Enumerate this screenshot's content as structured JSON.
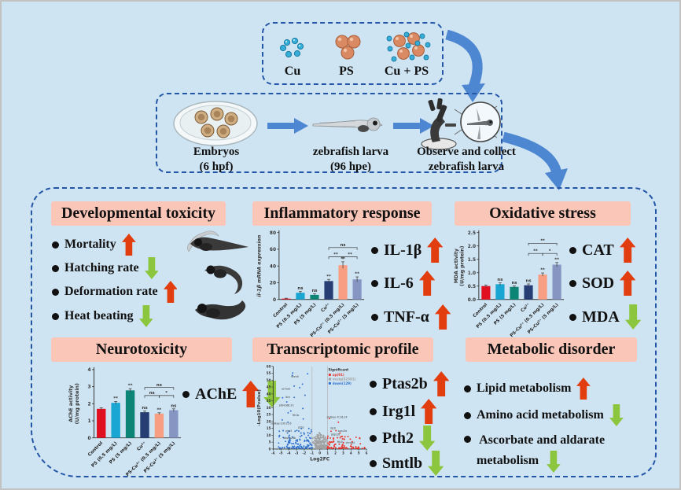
{
  "page": {
    "bg": "#cfe4f2",
    "dashed_border": "#2456a8",
    "header_bg": "#f9c6b8",
    "up_color": "#e23d0e",
    "down_color": "#8cc63e",
    "flow_arrow_blue": "#4d87d2"
  },
  "exposure": {
    "items": [
      {
        "label": "Cu"
      },
      {
        "label": "PS"
      },
      {
        "label": "Cu + PS"
      }
    ]
  },
  "workflow": {
    "steps": [
      {
        "line1": "Embryos",
        "line2": "(6 hpf)"
      },
      {
        "line1": "zebrafish larva",
        "line2": "(96 hpe)"
      },
      {
        "line1": "Observe and collect",
        "line2": "zebrafish larva"
      }
    ]
  },
  "panels": {
    "developmental": {
      "title": "Developmental toxicity",
      "items": [
        {
          "label": "Mortality",
          "direction": "up"
        },
        {
          "label": "Hatching rate",
          "direction": "down"
        },
        {
          "label": "Deformation rate",
          "direction": "up"
        },
        {
          "label": "Heat beating",
          "direction": "down"
        }
      ]
    },
    "inflammatory": {
      "title": "Inflammatory response",
      "items": [
        {
          "label": "IL-1β",
          "direction": "up"
        },
        {
          "label": "IL-6",
          "direction": "up"
        },
        {
          "label": "TNF-α",
          "direction": "up"
        }
      ]
    },
    "oxidative": {
      "title": "Oxidative stress",
      "items": [
        {
          "label": "CAT",
          "direction": "up"
        },
        {
          "label": "SOD",
          "direction": "up"
        },
        {
          "label": "MDA",
          "direction": "down"
        }
      ]
    },
    "neurotoxicity": {
      "title": "Neurotoxicity",
      "items": [
        {
          "label": "AChE",
          "direction": "updown"
        }
      ]
    },
    "transcriptomic": {
      "title": "Transcriptomic profile",
      "items": [
        {
          "label": "Ptas2b",
          "direction": "up"
        },
        {
          "label": "Irg1l",
          "direction": "up"
        },
        {
          "label": "Pth2",
          "direction": "down"
        },
        {
          "label": "Smtlb",
          "direction": "down"
        }
      ]
    },
    "metabolic": {
      "title": "Metabolic disorder",
      "items": [
        {
          "label": "Lipid metabolism",
          "direction": "up"
        },
        {
          "label": "Amino acid metabolism",
          "direction": "down"
        },
        {
          "label": "Ascorbate and aldarate metabolism",
          "direction": "down",
          "wrap_before": "metabolism"
        }
      ]
    }
  },
  "chart_data": [
    {
      "type": "bar",
      "id": "il1b-expression",
      "ylabel": [
        "il-1β mRNA expression"
      ],
      "ylabel_italic": true,
      "ylim": [
        0,
        80
      ],
      "ytick_vals": [
        0,
        20,
        40,
        60,
        80
      ],
      "ytick_labels": [
        "0",
        "20",
        "40",
        "60",
        "80"
      ],
      "categories": [
        "Control",
        "PS (0.5 mg/L)",
        "PS (5 mg/L)",
        "Cu²⁺",
        "PS-Cu²⁺ (0.5 mg/L)",
        "PS-Cu²⁺ (5 mg/L)"
      ],
      "values": [
        1,
        8,
        5.5,
        22,
        41,
        24
      ],
      "errors": [
        0.5,
        1.5,
        1.2,
        2,
        4,
        3
      ],
      "bar_labels": [
        "",
        "ns",
        "ns",
        "**",
        "**",
        "**"
      ],
      "colors": [
        "#e01020",
        "#19a6d2",
        "#0c8577",
        "#263e74",
        "#f89e83",
        "#8795c3"
      ],
      "brackets": [
        {
          "from": 3,
          "to": 4,
          "label": "**",
          "y": 51
        },
        {
          "from": 4,
          "to": 5,
          "label": "**",
          "y": 51
        },
        {
          "from": 3,
          "to": 5,
          "label": "ns",
          "y": 62
        }
      ]
    },
    {
      "type": "bar",
      "id": "mda-activity",
      "ylabel": [
        "MDA activity",
        "(U/mg protein)"
      ],
      "ylabel_italic": false,
      "ylim": [
        0,
        2.5
      ],
      "ytick_vals": [
        0,
        0.5,
        1.0,
        1.5,
        2.0,
        2.5
      ],
      "ytick_labels": [
        "0.0",
        "0.5",
        "1.0",
        "1.5",
        "2.0",
        "2.5"
      ],
      "categories": [
        "Control",
        "PS (0.5 mg/L)",
        "PS (5 mg/L)",
        "Cu²⁺",
        "PS-Cu²⁺ (0.5 mg/L)",
        "PS-Cu²⁺ (5 mg/L)"
      ],
      "values": [
        0.5,
        0.57,
        0.47,
        0.53,
        0.93,
        1.3
      ],
      "errors": [
        0.04,
        0.05,
        0.04,
        0.05,
        0.06,
        0.08
      ],
      "bar_labels": [
        "",
        "ns",
        "ns",
        "ns",
        "**",
        "**"
      ],
      "colors": [
        "#e01020",
        "#19a6d2",
        "#0c8577",
        "#263e74",
        "#f89e83",
        "#8795c3"
      ],
      "brackets": [
        {
          "from": 3,
          "to": 4,
          "label": "**",
          "y": 1.72
        },
        {
          "from": 4,
          "to": 5,
          "label": "*",
          "y": 1.72
        },
        {
          "from": 3,
          "to": 5,
          "label": "**",
          "y": 2.1
        }
      ]
    },
    {
      "type": "bar",
      "id": "ache-activity",
      "ylabel": [
        "AChE activity",
        "(U/mg protein)"
      ],
      "ylabel_italic": false,
      "ylim": [
        0,
        4
      ],
      "ytick_vals": [
        0,
        1,
        2,
        3,
        4
      ],
      "ytick_labels": [
        "0",
        "1",
        "2",
        "3",
        "4"
      ],
      "categories": [
        "Control",
        "PS (0.5 mg/L)",
        "PS (5 mg/L)",
        "Cu²⁺",
        "PS-Cu²⁺ (0.5 mg/L)",
        "PS-Cu²⁺ (5 mg/L)"
      ],
      "values": [
        1.7,
        2.05,
        2.78,
        1.5,
        1.42,
        1.62
      ],
      "errors": [
        0.06,
        0.08,
        0.1,
        0.07,
        0.05,
        0.08
      ],
      "bar_labels": [
        "",
        "**",
        "**",
        "ns",
        "**",
        "ns"
      ],
      "colors": [
        "#e01020",
        "#19a6d2",
        "#0c8577",
        "#263e74",
        "#f89e83",
        "#8795c3"
      ],
      "brackets": [
        {
          "from": 3,
          "to": 4,
          "label": "ns",
          "y": 2.48
        },
        {
          "from": 4,
          "to": 5,
          "label": "*",
          "y": 2.48
        },
        {
          "from": 3,
          "to": 5,
          "label": "ns",
          "y": 2.95
        }
      ]
    },
    {
      "type": "scatter",
      "id": "volcano-plot",
      "xlabel": "Log2FC",
      "ylabel": "-Log10(Pvalue)",
      "xlim": [
        -6,
        6
      ],
      "ylim": [
        0,
        60
      ],
      "xtick_vals": [
        -6,
        -5,
        -4,
        -3,
        -2,
        -1,
        0,
        1,
        2,
        3,
        4,
        5,
        6
      ],
      "ytick_vals": [
        0,
        5,
        10,
        15,
        20,
        25,
        30,
        35,
        40,
        45,
        50,
        55,
        60
      ],
      "threshold_x": [
        -1,
        1
      ],
      "legend": {
        "title": "Significant",
        "entries": [
          {
            "label": "up(91)",
            "color": "#e8342c"
          },
          {
            "label": "nosig(32301)",
            "color": "#a0a0a0"
          },
          {
            "label": "down(129)",
            "color": "#2f6fce"
          }
        ]
      },
      "point_counts": {
        "up": 91,
        "nosig_shown": 240,
        "down": 129
      },
      "gene_labels": [
        {
          "t": "dhrs9",
          "x": -3.2,
          "y": 52
        },
        {
          "t": "ucmab",
          "x": -4.4,
          "y": 43
        },
        {
          "t": "dcn",
          "x": -4.1,
          "y": 37
        },
        {
          "t": "af04166.1h",
          "x": -4.3,
          "y": 31
        },
        {
          "t": "fth1b",
          "x": -3.1,
          "y": 24
        },
        {
          "t": "si:dkey-23h11.6",
          "x": -5.0,
          "y": 18
        },
        {
          "t": "pth2",
          "x": -2.4,
          "y": 15
        },
        {
          "t": "pim5",
          "x": -4.0,
          "y": 12.5
        },
        {
          "t": "adora2ab",
          "x": -3.9,
          "y": 7.5
        },
        {
          "t": "si:dkey-7c16.24",
          "x": 2.2,
          "y": 22.5
        },
        {
          "t": "irg1l",
          "x": 1.7,
          "y": 14.5
        },
        {
          "t": "socs3a",
          "x": 2.9,
          "y": 12.5
        },
        {
          "t": "ptgs2b",
          "x": 2.0,
          "y": 10
        },
        {
          "t": "fth2l",
          "x": 2.6,
          "y": 4.5
        },
        {
          "t": "chrna4",
          "x": 3.9,
          "y": 4
        }
      ]
    }
  ]
}
